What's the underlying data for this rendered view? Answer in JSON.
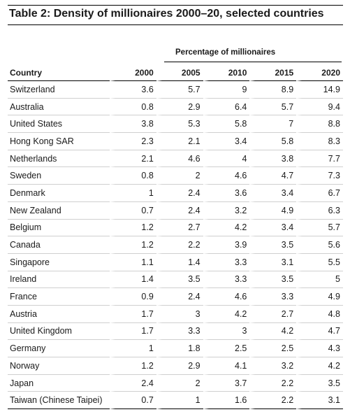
{
  "title": "Table 2: Density of millionaires 2000–20, selected countries",
  "group_header": "Percentage of millionaires",
  "columns": [
    "Country",
    "2000",
    "2005",
    "2010",
    "2015",
    "2020"
  ],
  "rows": [
    [
      "Switzerland",
      "3.6",
      "5.7",
      "9",
      "8.9",
      "14.9"
    ],
    [
      "Australia",
      "0.8",
      "2.9",
      "6.4",
      "5.7",
      "9.4"
    ],
    [
      "United States",
      "3.8",
      "5.3",
      "5.8",
      "7",
      "8.8"
    ],
    [
      "Hong Kong SAR",
      "2.3",
      "2.1",
      "3.4",
      "5.8",
      "8.3"
    ],
    [
      "Netherlands",
      "2.1",
      "4.6",
      "4",
      "3.8",
      "7.7"
    ],
    [
      "Sweden",
      "0.8",
      "2",
      "4.6",
      "4.7",
      "7.3"
    ],
    [
      "Denmark",
      "1",
      "2.4",
      "3.6",
      "3.4",
      "6.7"
    ],
    [
      "New Zealand",
      "0.7",
      "2.4",
      "3.2",
      "4.9",
      "6.3"
    ],
    [
      "Belgium",
      "1.2",
      "2.7",
      "4.2",
      "3.4",
      "5.7"
    ],
    [
      "Canada",
      "1.2",
      "2.2",
      "3.9",
      "3.5",
      "5.6"
    ],
    [
      "Singapore",
      "1.1",
      "1.4",
      "3.3",
      "3.1",
      "5.5"
    ],
    [
      "Ireland",
      "1.4",
      "3.5",
      "3.3",
      "3.5",
      "5"
    ],
    [
      "France",
      "0.9",
      "2.4",
      "4.6",
      "3.3",
      "4.9"
    ],
    [
      "Austria",
      "1.7",
      "3",
      "4.2",
      "2.7",
      "4.8"
    ],
    [
      "United Kingdom",
      "1.7",
      "3.3",
      "3",
      "4.2",
      "4.7"
    ],
    [
      "Germany",
      "1",
      "1.8",
      "2.5",
      "2.5",
      "4.3"
    ],
    [
      "Norway",
      "1.2",
      "2.9",
      "4.1",
      "3.2",
      "4.2"
    ],
    [
      "Japan",
      "2.4",
      "2",
      "3.7",
      "2.2",
      "3.5"
    ],
    [
      "Taiwan (Chinese Taipei)",
      "0.7",
      "1",
      "1.6",
      "2.2",
      "3.1"
    ]
  ]
}
